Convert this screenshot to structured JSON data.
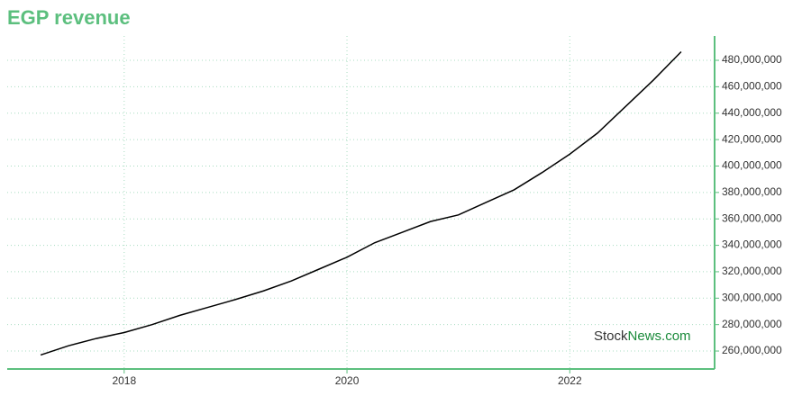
{
  "chart_data": {
    "type": "line",
    "title": "EGP revenue",
    "x": [
      2017.25,
      2017.5,
      2017.75,
      2018,
      2018.25,
      2018.5,
      2018.75,
      2019,
      2019.25,
      2019.5,
      2019.75,
      2020,
      2020.25,
      2020.5,
      2020.75,
      2021,
      2021.25,
      2021.5,
      2021.75,
      2022,
      2022.25,
      2022.5,
      2022.75,
      2023
    ],
    "series": [
      {
        "name": "EGP revenue",
        "color": "#000000",
        "values": [
          257000000,
          264000000,
          269500000,
          274000000,
          280000000,
          287000000,
          293000000,
          299000000,
          305500000,
          313000000,
          322000000,
          331000000,
          342000000,
          350000000,
          358000000,
          363000000,
          372500000,
          382000000,
          395000000,
          409000000,
          425000000,
          445000000,
          465000000,
          486500000
        ]
      }
    ],
    "xlim": [
      2016.95,
      2023.3
    ],
    "xticks": [
      2018,
      2020,
      2022
    ],
    "ylim": [
      246400000,
      498400000
    ],
    "yticks": [
      {
        "value": 260000000,
        "label": "260,000,000"
      },
      {
        "value": 280000000,
        "label": "280,000,000"
      },
      {
        "value": 300000000,
        "label": "300,000,000"
      },
      {
        "value": 320000000,
        "label": "320,000,000"
      },
      {
        "value": 340000000,
        "label": "340,000,000"
      },
      {
        "value": 360000000,
        "label": "360,000,000"
      },
      {
        "value": 380000000,
        "label": "380,000,000"
      },
      {
        "value": 400000000,
        "label": "400,000,000"
      },
      {
        "value": 420000000,
        "label": "420,000,000"
      },
      {
        "value": 440000000,
        "label": "440,000,000"
      },
      {
        "value": 460000000,
        "label": "460,000,000"
      },
      {
        "value": 480000000,
        "label": "480,000,000"
      }
    ],
    "grid": true,
    "axis_color": "#5cbf7e",
    "watermark": [
      "Stock",
      "News.com"
    ]
  }
}
